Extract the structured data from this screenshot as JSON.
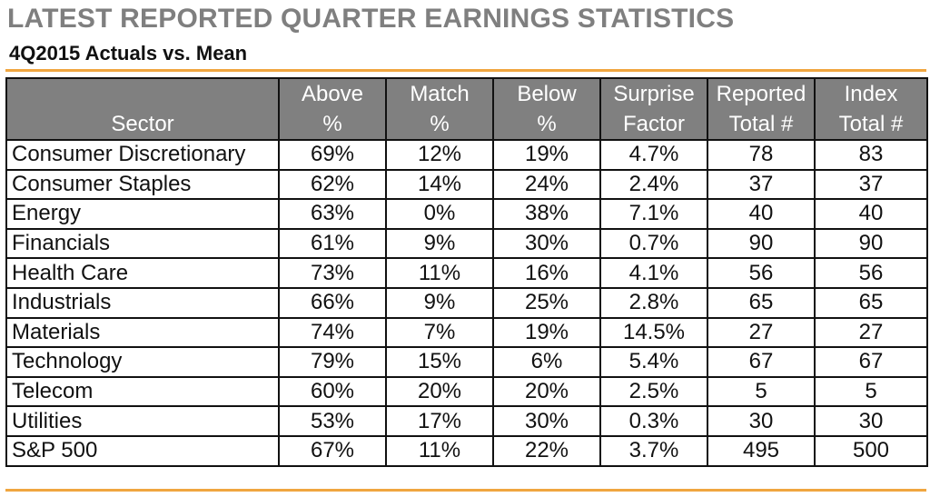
{
  "title": "LATEST REPORTED QUARTER EARNINGS STATISTICS",
  "subtitle": "4Q2015 Actuals vs. Mean",
  "colors": {
    "accent_rule": "#f0a640",
    "header_bg": "#808080",
    "title_gray": "#7f7f7f"
  },
  "chart_data": {
    "type": "table",
    "columns": [
      {
        "line1": "",
        "line2": "Sector"
      },
      {
        "line1": "Above",
        "line2": "%"
      },
      {
        "line1": "Match",
        "line2": "%"
      },
      {
        "line1": "Below",
        "line2": "%"
      },
      {
        "line1": "Surprise",
        "line2": "Factor"
      },
      {
        "line1": "Reported",
        "line2": "Total #"
      },
      {
        "line1": "Index",
        "line2": "Total #"
      }
    ],
    "rows": [
      [
        "Consumer Discretionary",
        "69%",
        "12%",
        "19%",
        "4.7%",
        "78",
        "83"
      ],
      [
        "Consumer Staples",
        "62%",
        "14%",
        "24%",
        "2.4%",
        "37",
        "37"
      ],
      [
        "Energy",
        "63%",
        "0%",
        "38%",
        "7.1%",
        "40",
        "40"
      ],
      [
        "Financials",
        "61%",
        "9%",
        "30%",
        "0.7%",
        "90",
        "90"
      ],
      [
        "Health Care",
        "73%",
        "11%",
        "16%",
        "4.1%",
        "56",
        "56"
      ],
      [
        "Industrials",
        "66%",
        "9%",
        "25%",
        "2.8%",
        "65",
        "65"
      ],
      [
        "Materials",
        "74%",
        "7%",
        "19%",
        "14.5%",
        "27",
        "27"
      ],
      [
        "Technology",
        "79%",
        "15%",
        "6%",
        "5.4%",
        "67",
        "67"
      ],
      [
        "Telecom",
        "60%",
        "20%",
        "20%",
        "2.5%",
        "5",
        "5"
      ],
      [
        "Utilities",
        "53%",
        "17%",
        "30%",
        "0.3%",
        "30",
        "30"
      ],
      [
        "S&P 500",
        "67%",
        "11%",
        "22%",
        "3.7%",
        "495",
        "500"
      ]
    ]
  }
}
